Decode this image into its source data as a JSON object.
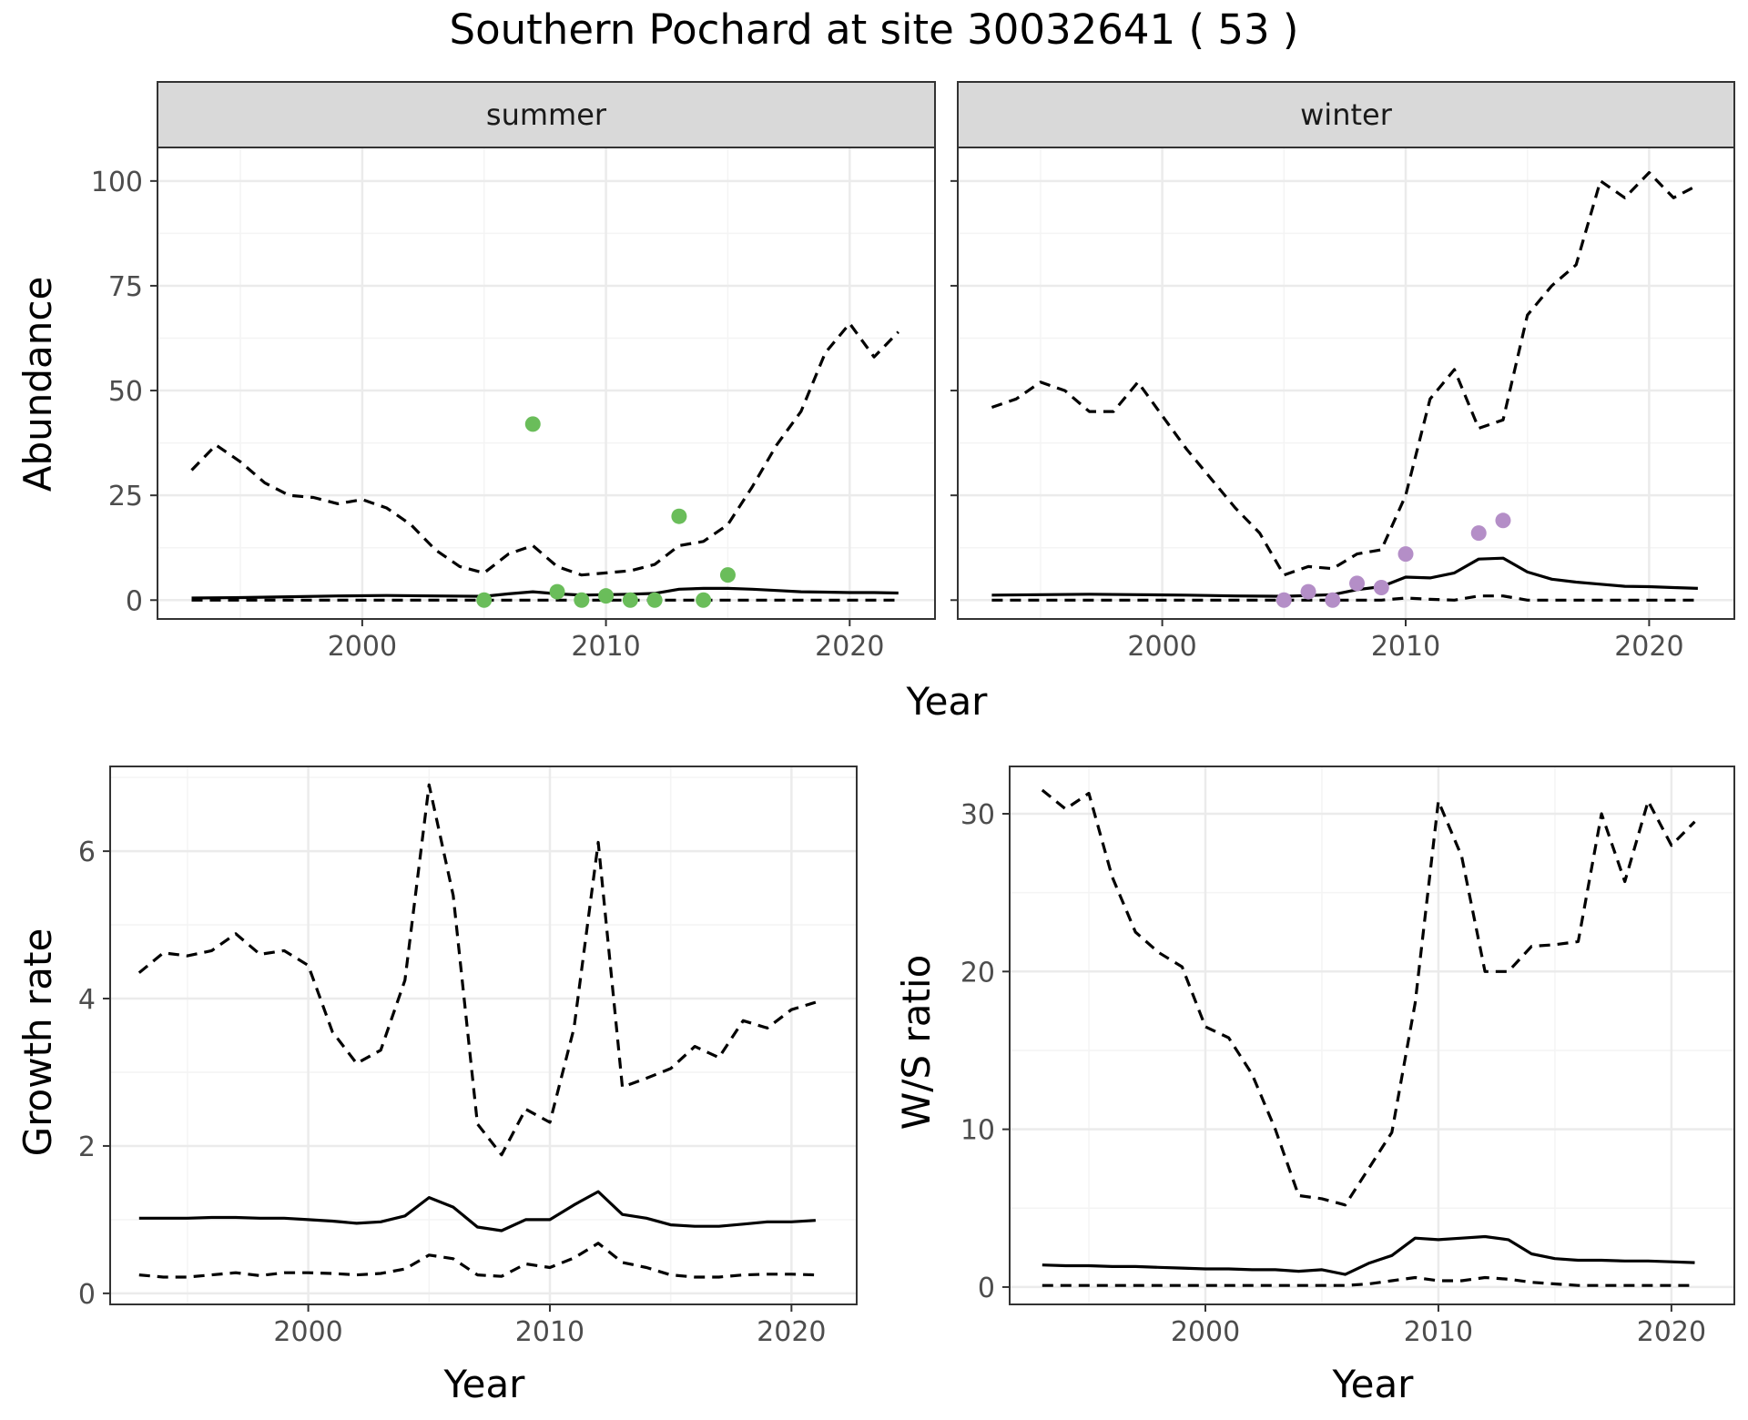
{
  "figure": {
    "title": "Southern Pochard at site 30032641 ( 53 )"
  },
  "colors": {
    "summer_points": "#6abd5a",
    "winter_points": "#b48ec7",
    "lines": "#000000",
    "grid_major": "#ebebeb",
    "grid_minor": "#f4f4f4",
    "strip_fill": "#d9d9d9",
    "tick_text": "#4d4d4d"
  },
  "chart_data": [
    {
      "id": "summer",
      "type": "line",
      "panel_label": "summer",
      "xlabel": "",
      "ylabel": "Abundance",
      "xlim": [
        1991.6,
        2023.5
      ],
      "ylim": [
        -4.5,
        108
      ],
      "x_ticks": [
        2000,
        2010,
        2020
      ],
      "y_ticks": [
        0,
        25,
        50,
        75,
        100
      ],
      "show_y_tick_labels": true,
      "grid": true,
      "series": [
        {
          "style": "solid",
          "x": [
            1993,
            1995,
            1997,
            1999,
            2001,
            2003,
            2005,
            2006,
            2007,
            2008,
            2009,
            2010,
            2011,
            2012,
            2013,
            2014,
            2015,
            2016,
            2017,
            2018,
            2019,
            2020,
            2021,
            2022
          ],
          "y": [
            0.5,
            0.6,
            0.8,
            1.0,
            1.1,
            1.0,
            0.9,
            1.5,
            2.0,
            1.5,
            1.2,
            1.3,
            1.4,
            1.6,
            2.6,
            2.8,
            2.8,
            2.6,
            2.3,
            2.0,
            1.9,
            1.8,
            1.8,
            1.7
          ]
        },
        {
          "style": "dashed",
          "x": [
            1993,
            1994,
            1995,
            1996,
            1997,
            1998,
            1999,
            2000,
            2001,
            2002,
            2003,
            2004,
            2005,
            2006,
            2007,
            2008,
            2009,
            2010,
            2011,
            2012,
            2013,
            2014,
            2015,
            2016,
            2017,
            2018,
            2019,
            2020,
            2021,
            2022
          ],
          "y": [
            31,
            37,
            33,
            28,
            25,
            24.5,
            23,
            24,
            22,
            18,
            12,
            8,
            6.5,
            11,
            13,
            8,
            6,
            6.5,
            7,
            8.5,
            13,
            14,
            18,
            27,
            37,
            45,
            59,
            66,
            58,
            64
          ]
        },
        {
          "style": "dashed",
          "x": [
            1993,
            2022
          ],
          "y": [
            0,
            0
          ]
        }
      ],
      "points": {
        "x": [
          2005,
          2007,
          2008,
          2009,
          2010,
          2011,
          2012,
          2013,
          2014,
          2015
        ],
        "y": [
          0,
          42,
          2,
          0,
          1,
          0,
          0,
          20,
          0,
          6
        ]
      }
    },
    {
      "id": "winter",
      "type": "line",
      "panel_label": "winter",
      "xlabel": "",
      "ylabel": "",
      "xlim": [
        1991.6,
        2023.5
      ],
      "ylim": [
        -4.5,
        108
      ],
      "x_ticks": [
        2000,
        2010,
        2020
      ],
      "y_ticks": [
        0,
        25,
        50,
        75,
        100
      ],
      "show_y_tick_labels": false,
      "grid": true,
      "series": [
        {
          "style": "solid",
          "x": [
            1993,
            1995,
            1997,
            1999,
            2001,
            2003,
            2005,
            2007,
            2008,
            2009,
            2010,
            2011,
            2012,
            2013,
            2014,
            2015,
            2016,
            2017,
            2018,
            2019,
            2020,
            2021,
            2022
          ],
          "y": [
            1.2,
            1.3,
            1.4,
            1.3,
            1.2,
            1.0,
            0.9,
            1.3,
            2.5,
            3.2,
            5.5,
            5.3,
            6.5,
            9.8,
            10.0,
            6.7,
            5.0,
            4.3,
            3.8,
            3.3,
            3.2,
            3.0,
            2.8
          ]
        },
        {
          "style": "dashed",
          "x": [
            1993,
            1994,
            1995,
            1996,
            1997,
            1998,
            1999,
            2000,
            2001,
            2002,
            2003,
            2004,
            2005,
            2006,
            2007,
            2008,
            2009,
            2010,
            2011,
            2012,
            2013,
            2014,
            2015,
            2016,
            2017,
            2018,
            2019,
            2020,
            2021,
            2022
          ],
          "y": [
            46,
            48,
            52,
            50,
            45,
            45,
            52,
            44,
            36,
            29,
            22,
            16,
            6,
            8,
            7.5,
            11,
            12,
            25,
            48,
            55,
            41,
            43,
            68,
            75,
            80,
            100,
            96,
            102,
            96,
            99
          ]
        },
        {
          "style": "dashed",
          "x": [
            1993,
            2004,
            2005,
            2006,
            2007,
            2008,
            2009,
            2010,
            2011,
            2012,
            2013,
            2014,
            2015,
            2016,
            2022
          ],
          "y": [
            0,
            0,
            0,
            0,
            0,
            0,
            0,
            0.5,
            0.2,
            0,
            1,
            1,
            0,
            0,
            0
          ]
        }
      ],
      "points": {
        "x": [
          2005,
          2006,
          2007,
          2008,
          2009,
          2010,
          2013,
          2014
        ],
        "y": [
          0,
          2,
          0,
          4,
          3,
          11,
          16,
          19
        ]
      }
    },
    {
      "id": "growth",
      "type": "line",
      "xlabel": "Year",
      "ylabel": "Growth rate",
      "xlim": [
        1991.8,
        2022.7
      ],
      "ylim": [
        -0.15,
        7.15
      ],
      "x_ticks": [
        2000,
        2010,
        2020
      ],
      "y_ticks": [
        0,
        2,
        4,
        6
      ],
      "show_y_tick_labels": true,
      "grid": true,
      "series": [
        {
          "style": "solid",
          "x": [
            1993,
            1994,
            1995,
            1996,
            1997,
            1998,
            1999,
            2000,
            2001,
            2002,
            2003,
            2004,
            2005,
            2006,
            2007,
            2008,
            2009,
            2010,
            2011,
            2012,
            2013,
            2014,
            2015,
            2016,
            2017,
            2018,
            2019,
            2020,
            2021
          ],
          "y": [
            1.02,
            1.02,
            1.02,
            1.03,
            1.03,
            1.02,
            1.02,
            1.0,
            0.98,
            0.95,
            0.97,
            1.05,
            1.3,
            1.17,
            0.9,
            0.85,
            1.0,
            1.0,
            1.2,
            1.38,
            1.07,
            1.02,
            0.93,
            0.91,
            0.91,
            0.94,
            0.97,
            0.97,
            0.99
          ]
        },
        {
          "style": "dashed",
          "x": [
            1993,
            1994,
            1995,
            1996,
            1997,
            1998,
            1999,
            2000,
            2001,
            2002,
            2003,
            2004,
            2005,
            2006,
            2007,
            2008,
            2009,
            2010,
            2011,
            2012,
            2013,
            2014,
            2015,
            2016,
            2017,
            2018,
            2019,
            2020,
            2021
          ],
          "y": [
            4.35,
            4.62,
            4.58,
            4.65,
            4.88,
            4.6,
            4.65,
            4.45,
            3.55,
            3.12,
            3.3,
            4.25,
            6.9,
            5.4,
            2.3,
            1.88,
            2.5,
            2.32,
            3.6,
            6.12,
            2.8,
            2.92,
            3.05,
            3.35,
            3.2,
            3.7,
            3.6,
            3.85,
            3.95
          ]
        },
        {
          "style": "dashed",
          "x": [
            1993,
            1994,
            1995,
            1996,
            1997,
            1998,
            1999,
            2000,
            2001,
            2002,
            2003,
            2004,
            2005,
            2006,
            2007,
            2008,
            2009,
            2010,
            2011,
            2012,
            2013,
            2014,
            2015,
            2016,
            2017,
            2018,
            2019,
            2020,
            2021
          ],
          "y": [
            0.25,
            0.22,
            0.22,
            0.25,
            0.28,
            0.24,
            0.28,
            0.28,
            0.27,
            0.25,
            0.27,
            0.33,
            0.52,
            0.47,
            0.25,
            0.23,
            0.4,
            0.35,
            0.48,
            0.68,
            0.42,
            0.35,
            0.25,
            0.22,
            0.22,
            0.25,
            0.26,
            0.26,
            0.25
          ]
        }
      ]
    },
    {
      "id": "ws_ratio",
      "type": "line",
      "xlabel": "Year",
      "ylabel": "W/S ratio",
      "xlim": [
        1991.6,
        2022.7
      ],
      "ylim": [
        -1.1,
        33.0
      ],
      "x_ticks": [
        2000,
        2010,
        2020
      ],
      "y_ticks": [
        0,
        10,
        20,
        30
      ],
      "show_y_tick_labels": true,
      "grid": true,
      "series": [
        {
          "style": "solid",
          "x": [
            1993,
            1994,
            1995,
            1996,
            1997,
            1998,
            1999,
            2000,
            2001,
            2002,
            2003,
            2004,
            2005,
            2006,
            2007,
            2008,
            2009,
            2010,
            2011,
            2012,
            2013,
            2014,
            2015,
            2016,
            2017,
            2018,
            2019,
            2020,
            2021
          ],
          "y": [
            1.4,
            1.35,
            1.35,
            1.3,
            1.3,
            1.25,
            1.2,
            1.15,
            1.15,
            1.1,
            1.1,
            1.0,
            1.1,
            0.8,
            1.5,
            2.0,
            3.1,
            3.0,
            3.1,
            3.2,
            3.0,
            2.1,
            1.8,
            1.7,
            1.7,
            1.65,
            1.65,
            1.6,
            1.55
          ]
        },
        {
          "style": "dashed",
          "x": [
            1993,
            1994,
            1995,
            1996,
            1997,
            1998,
            1999,
            2000,
            2001,
            2002,
            2003,
            2004,
            2005,
            2006,
            2007,
            2008,
            2009,
            2010,
            2011,
            2012,
            2013,
            2014,
            2015,
            2016,
            2017,
            2018,
            2019,
            2020,
            2021
          ],
          "y": [
            31.5,
            30.3,
            31.3,
            26.0,
            22.5,
            21.2,
            20.3,
            16.5,
            15.8,
            13.5,
            10.0,
            5.8,
            5.6,
            5.2,
            7.5,
            9.8,
            18.0,
            30.8,
            27.3,
            20.0,
            20.0,
            21.6,
            21.7,
            21.9,
            30.0,
            25.7,
            30.8,
            28.0,
            29.5
          ]
        },
        {
          "style": "dashed",
          "x": [
            1993,
            2004,
            2005,
            2006,
            2007,
            2008,
            2009,
            2010,
            2011,
            2012,
            2013,
            2014,
            2015,
            2016,
            2021
          ],
          "y": [
            0.1,
            0.1,
            0.1,
            0.1,
            0.2,
            0.4,
            0.6,
            0.4,
            0.4,
            0.6,
            0.5,
            0.3,
            0.2,
            0.1,
            0.1
          ]
        }
      ]
    }
  ]
}
